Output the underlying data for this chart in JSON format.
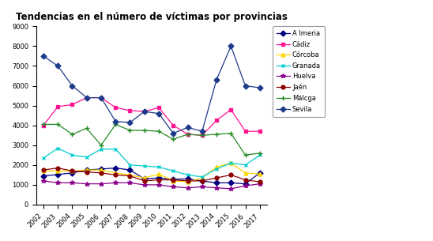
{
  "title": "Tendencias en el número de víctimas por provincias",
  "years": [
    2002,
    2003,
    2004,
    2005,
    2006,
    2007,
    2008,
    2009,
    2010,
    2011,
    2012,
    2013,
    2014,
    2015,
    2016,
    2017
  ],
  "series": [
    {
      "label": "A lmeria",
      "values": [
        1450,
        1520,
        1600,
        1750,
        1800,
        1850,
        1750,
        1300,
        1350,
        1280,
        1300,
        1200,
        1100,
        1100,
        1050,
        1600
      ],
      "color": "#000080",
      "marker": "D",
      "markersize": 3.5
    },
    {
      "label": "Cádiz",
      "values": [
        4000,
        4950,
        5050,
        5400,
        5400,
        4900,
        4750,
        4700,
        4900,
        4000,
        3550,
        3500,
        4250,
        4800,
        3700,
        3700
      ],
      "color": "#FF1493",
      "marker": "s",
      "markersize": 3.5
    },
    {
      "label": "Córcoba",
      "values": [
        1700,
        1700,
        1700,
        1750,
        1750,
        1600,
        1500,
        1350,
        1550,
        1200,
        1150,
        1350,
        1900,
        2100,
        1600,
        1550
      ],
      "color": "#FFD700",
      "marker": "^",
      "markersize": 3.5
    },
    {
      "label": "Granada",
      "values": [
        2350,
        2850,
        2500,
        2400,
        2800,
        2800,
        2000,
        1950,
        1900,
        1700,
        1500,
        1400,
        1800,
        2100,
        2000,
        2500
      ],
      "color": "#00CED1",
      "marker": "x",
      "markersize": 3.5
    },
    {
      "label": "Huelva",
      "values": [
        1200,
        1100,
        1100,
        1050,
        1050,
        1100,
        1100,
        1000,
        1000,
        900,
        850,
        900,
        850,
        800,
        950,
        1050
      ],
      "color": "#8B008B",
      "marker": "*",
      "markersize": 4
    },
    {
      "label": "Jaén",
      "values": [
        1750,
        1850,
        1700,
        1650,
        1600,
        1500,
        1450,
        1200,
        1250,
        1250,
        1200,
        1200,
        1350,
        1500,
        1250,
        1150
      ],
      "color": "#8B0000",
      "marker": "o",
      "markersize": 3.5
    },
    {
      "label": "Málcga",
      "values": [
        4050,
        4050,
        3550,
        3850,
        3000,
        4050,
        3750,
        3750,
        3700,
        3300,
        3550,
        3500,
        3550,
        3600,
        2500,
        2600
      ],
      "color": "#228B22",
      "marker": "+",
      "markersize": 4
    },
    {
      "label": "Sevila",
      "values": [
        7500,
        7000,
        6000,
        5400,
        5400,
        4200,
        4150,
        4700,
        4600,
        3600,
        3900,
        3700,
        6300,
        8000,
        6000,
        5900
      ],
      "color": "#1E3A8A",
      "marker": "D",
      "markersize": 3.5
    }
  ],
  "ylim": [
    0,
    9000
  ],
  "yticks": [
    0,
    1000,
    2000,
    3000,
    4000,
    5000,
    6000,
    7000,
    8000,
    9000
  ],
  "background_color": "#ffffff",
  "figsize": [
    5.48,
    3.05
  ],
  "dpi": 100
}
